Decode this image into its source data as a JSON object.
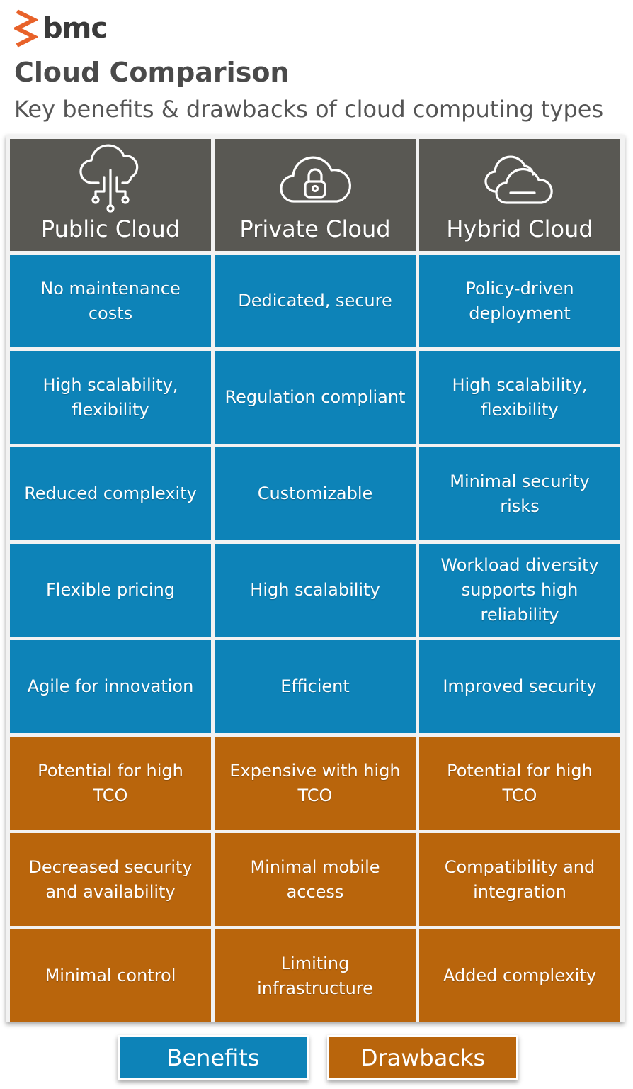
{
  "brand": {
    "name": "bmc",
    "color": "#e8622a"
  },
  "title": "Cloud Comparison",
  "subtitle": "Key benefits & drawbacks of cloud computing types",
  "colors": {
    "header": "#595853",
    "benefits": "#0d83b8",
    "drawbacks": "#b9650c"
  },
  "columns": [
    {
      "label": "Public Cloud",
      "icon": "cloud-network-icon"
    },
    {
      "label": "Private Cloud",
      "icon": "cloud-lock-icon"
    },
    {
      "label": "Hybrid Cloud",
      "icon": "overlapping-clouds-icon"
    }
  ],
  "benefits": [
    [
      "No maintenance costs",
      "Dedicated, secure",
      "Policy-driven deployment"
    ],
    [
      "High scalability, flexibility",
      "Regulation compliant",
      "High scalability, flexibility"
    ],
    [
      "Reduced complexity",
      "Customizable",
      "Minimal security risks"
    ],
    [
      "Flexible pricing",
      "High scalability",
      "Workload diversity supports high reliability"
    ],
    [
      "Agile for innovation",
      "Efficient",
      "Improved security"
    ]
  ],
  "drawbacks": [
    [
      "Potential for high TCO",
      "Expensive with high TCO",
      "Potential for high TCO"
    ],
    [
      "Decreased security and availability",
      "Minimal mobile access",
      "Compatibility and integration"
    ],
    [
      "Minimal control",
      "Limiting infrastructure",
      "Added complexity"
    ]
  ],
  "legend": {
    "benefits": "Benefits",
    "drawbacks": "Drawbacks"
  }
}
